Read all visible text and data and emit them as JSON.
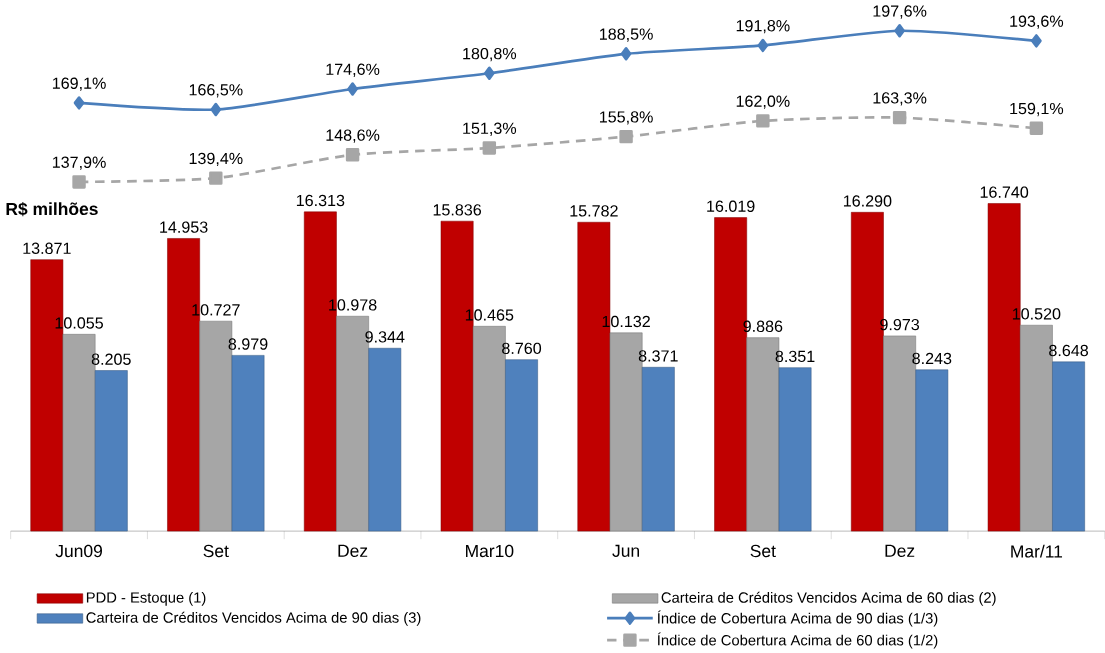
{
  "chart_data": [
    {
      "type": "bar",
      "categories": [
        "Jun09",
        "Set",
        "Dez",
        "Mar10",
        "Jun",
        "Set",
        "Dez",
        "Mar/11"
      ],
      "series": [
        {
          "name": "PDD - Estoque (1)",
          "color": "#c00000",
          "values": [
            13871,
            14953,
            16313,
            15836,
            15782,
            16019,
            16290,
            16740
          ],
          "value_labels": [
            "13.871",
            "14.953",
            "16.313",
            "15.836",
            "15.782",
            "16.019",
            "16.290",
            "16.740"
          ]
        },
        {
          "name": "Carteira de Créditos Vencidos Acima de 60 dias (2)",
          "color": "#a6a6a6",
          "values": [
            10055,
            10727,
            10978,
            10465,
            10132,
            9886,
            9973,
            10520
          ],
          "value_labels": [
            "10.055",
            "10.727",
            "10.978",
            "10.465",
            "10.132",
            "9.886",
            "9.973",
            "10.520"
          ]
        },
        {
          "name": "Carteira de Créditos Vencidos Acima de 90 dias (3)",
          "color": "#4f81bd",
          "values": [
            8205,
            8979,
            9344,
            8760,
            8371,
            8351,
            8243,
            8648
          ],
          "value_labels": [
            "8.205",
            "8.979",
            "9.344",
            "8.760",
            "8.371",
            "8.351",
            "8.243",
            "8.648"
          ]
        }
      ],
      "annotations": [
        "**R$ milhões**"
      ],
      "tick_labels": "x",
      "legend": "bottom"
    },
    {
      "type": "line",
      "series": [
        {
          "name": "Índice de Cobertura Acima de 90 dias (1/3)",
          "color": "#4a7ebb",
          "marker": "diamond",
          "line_style": "solid",
          "values": [
            169.1,
            166.5,
            174.6,
            180.8,
            188.5,
            191.8,
            197.6,
            193.6
          ],
          "value_labels": [
            "169,1%",
            "166,5%",
            "174,6%",
            "180,8%",
            "188,5%",
            "191,8%",
            "197,6%",
            "193,6%"
          ]
        },
        {
          "name": "Índice de Cobertura Acima de 60 dias (1/2)",
          "color": "#a6a6a6",
          "marker": "square",
          "line_style": "dashed",
          "values": [
            137.9,
            139.4,
            148.6,
            151.3,
            155.8,
            162.0,
            163.3,
            159.1
          ],
          "value_labels": [
            "137,9%",
            "139,4%",
            "148,6%",
            "151,3%",
            "155,8%",
            "162,0%",
            "163,3%",
            "159,1%"
          ]
        }
      ],
      "tick_labels": false,
      "legend": "bottom right"
    }
  ]
}
